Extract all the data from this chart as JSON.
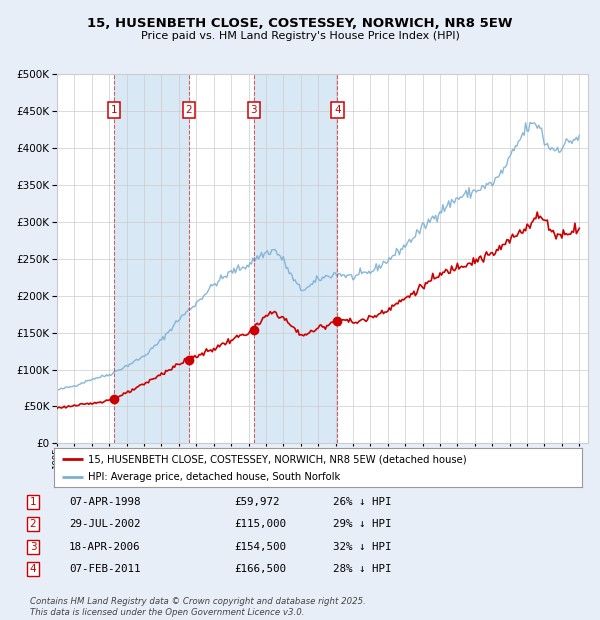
{
  "title_line1": "15, HUSENBETH CLOSE, COSTESSEY, NORWICH, NR8 5EW",
  "title_line2": "Price paid vs. HM Land Registry's House Price Index (HPI)",
  "legend_red": "15, HUSENBETH CLOSE, COSTESSEY, NORWICH, NR8 5EW (detached house)",
  "legend_blue": "HPI: Average price, detached house, South Norfolk",
  "footer": "Contains HM Land Registry data © Crown copyright and database right 2025.\nThis data is licensed under the Open Government Licence v3.0.",
  "transactions": [
    {
      "num": 1,
      "date": "1998-04-07",
      "price": 59972,
      "pct": 26,
      "x_year": 1998.27,
      "label_date": "07-APR-1998",
      "label_price": "£59,972",
      "label_pct": "26% ↓ HPI"
    },
    {
      "num": 2,
      "date": "2002-07-29",
      "price": 115000,
      "pct": 29,
      "x_year": 2002.58,
      "label_date": "29-JUL-2002",
      "label_price": "£115,000",
      "label_pct": "29% ↓ HPI"
    },
    {
      "num": 3,
      "date": "2006-04-18",
      "price": 154500,
      "pct": 32,
      "x_year": 2006.3,
      "label_date": "18-APR-2006",
      "label_price": "£154,500",
      "label_pct": "32% ↓ HPI"
    },
    {
      "num": 4,
      "date": "2011-02-07",
      "price": 166500,
      "pct": 28,
      "x_year": 2011.1,
      "label_date": "07-FEB-2011",
      "label_price": "£166,500",
      "label_pct": "28% ↓ HPI"
    }
  ],
  "bg_color": "#e8eef8",
  "plot_bg": "#ffffff",
  "red_color": "#cc0000",
  "blue_color": "#7bafd4",
  "vline_color": "#cc4444",
  "shade_color": "#d8e8f4",
  "grid_color": "#cccccc",
  "ylim": [
    0,
    500000
  ],
  "yticks": [
    0,
    50000,
    100000,
    150000,
    200000,
    250000,
    300000,
    350000,
    400000,
    450000,
    500000
  ],
  "xmin_year": 1995.0,
  "xmax_year": 2025.5,
  "xtick_years": [
    1995,
    1996,
    1997,
    1998,
    1999,
    2000,
    2001,
    2002,
    2003,
    2004,
    2005,
    2006,
    2007,
    2008,
    2009,
    2010,
    2011,
    2012,
    2013,
    2014,
    2015,
    2016,
    2017,
    2018,
    2019,
    2020,
    2021,
    2022,
    2023,
    2024,
    2025
  ]
}
